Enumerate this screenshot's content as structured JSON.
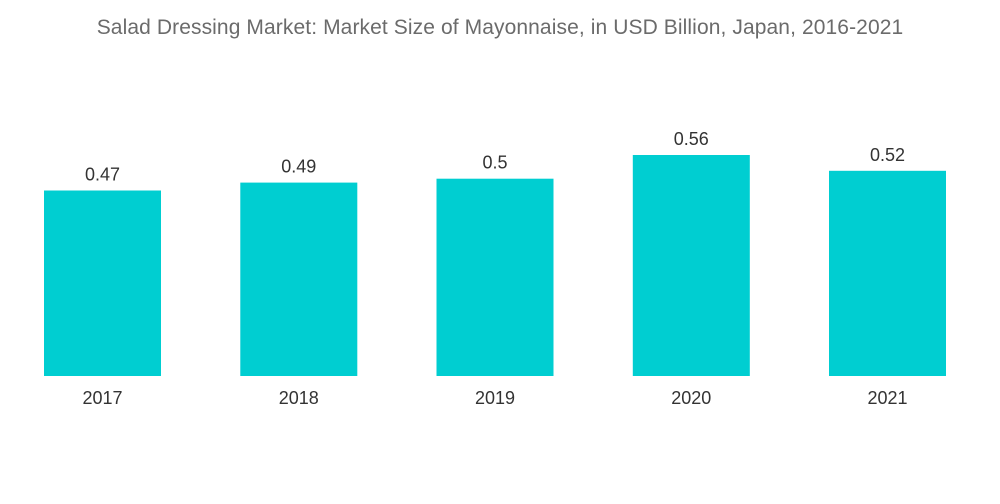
{
  "chart_data": {
    "type": "bar",
    "title": "Salad Dressing Market: Market Size of Mayonnaise, in USD Billion, Japan, 2016-2021",
    "categories": [
      "2017",
      "2018",
      "2019",
      "2020",
      "2021"
    ],
    "values": [
      0.47,
      0.49,
      0.5,
      0.56,
      0.52
    ],
    "value_labels": [
      "0.47",
      "0.49",
      "0.5",
      "0.56",
      "0.52"
    ],
    "xlabel": "",
    "ylabel": "",
    "ylim": [
      0,
      0.56
    ],
    "grid": false,
    "legend": "none",
    "bar_color": "#00CED1"
  }
}
